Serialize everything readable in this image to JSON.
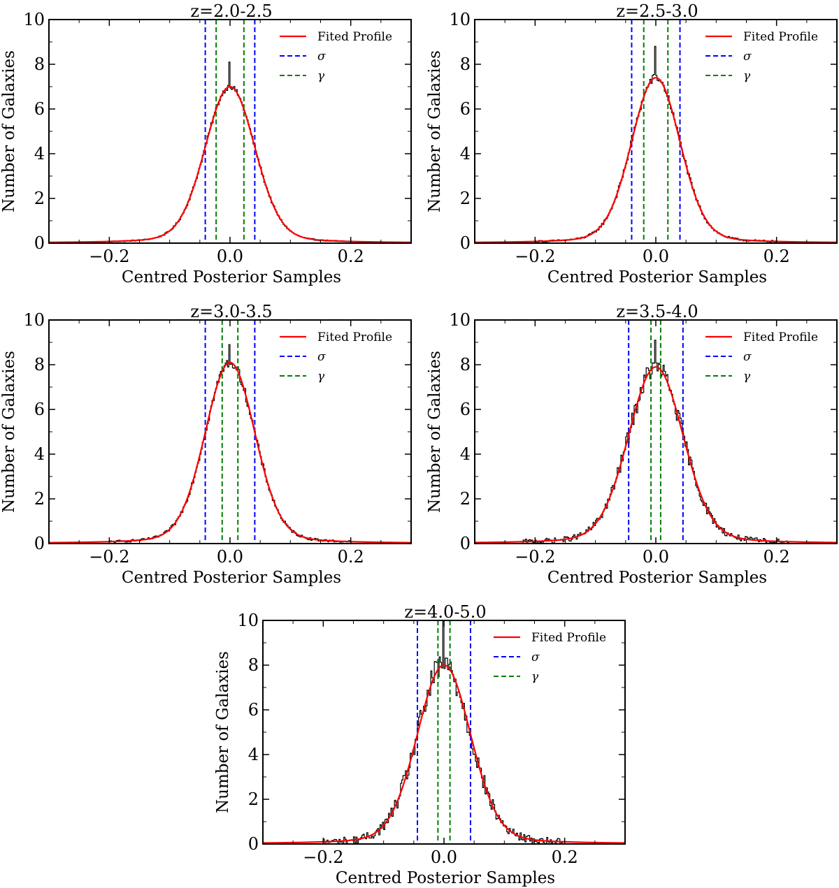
{
  "figure": {
    "panels": [
      {
        "id": "p1",
        "title": "z=2.0-2.5"
      },
      {
        "id": "p2",
        "title": "z=2.5-3.0"
      },
      {
        "id": "p3",
        "title": "z=3.0-3.5"
      },
      {
        "id": "p4",
        "title": "z=3.5-4.0"
      },
      {
        "id": "p5",
        "title": "z=4.0-5.0"
      }
    ],
    "xlabel": "Centred Posterior Samples",
    "ylabel": "Number of Galaxies",
    "legend": {
      "fit": "Fited Profile",
      "sigma": "σ",
      "gamma": "γ"
    }
  },
  "chart_data": [
    {
      "type": "line",
      "title": "z=2.0-2.5",
      "xlabel": "Centred Posterior Samples",
      "ylabel": "Number of Galaxies",
      "xlim": [
        -0.3,
        0.3
      ],
      "ylim": [
        0,
        10
      ],
      "xticks": [
        -0.2,
        0.0,
        0.2
      ],
      "xtick_labels": [
        "−0.2",
        "0.0",
        "0.2"
      ],
      "yticks": [
        0,
        2,
        4,
        6,
        8,
        10
      ],
      "ytick_labels": [
        "0",
        "2",
        "4",
        "6",
        "8",
        "10"
      ],
      "fit": {
        "peak": 7.0,
        "sigma": 0.041,
        "gamma": 0.023
      },
      "sigma_lines": [
        -0.041,
        0.041
      ],
      "gamma_lines": [
        -0.023,
        0.023
      ],
      "hist": {
        "x_range": [
          -0.2,
          0.2
        ],
        "max": 8.1,
        "noise": 0.12
      },
      "series": [
        {
          "name": "Fited Profile",
          "color": "#ff0000"
        },
        {
          "name": "σ",
          "color": "#0000ff"
        },
        {
          "name": "γ",
          "color": "#007f00"
        }
      ],
      "legend": "top-right"
    },
    {
      "type": "line",
      "title": "z=2.5-3.0",
      "xlabel": "Centred Posterior Samples",
      "ylabel": "Number of Galaxies",
      "xlim": [
        -0.3,
        0.3
      ],
      "ylim": [
        0,
        10
      ],
      "xticks": [
        -0.2,
        0.0,
        0.2
      ],
      "xtick_labels": [
        "−0.2",
        "0.0",
        "0.2"
      ],
      "yticks": [
        0,
        2,
        4,
        6,
        8,
        10
      ],
      "ytick_labels": [
        "0",
        "2",
        "4",
        "6",
        "8",
        "10"
      ],
      "fit": {
        "peak": 7.4,
        "sigma": 0.04,
        "gamma": 0.02
      },
      "sigma_lines": [
        -0.04,
        0.04
      ],
      "gamma_lines": [
        -0.02,
        0.02
      ],
      "hist": {
        "x_range": [
          -0.2,
          0.2
        ],
        "max": 8.8,
        "noise": 0.18
      },
      "series": [
        {
          "name": "Fited Profile",
          "color": "#ff0000"
        },
        {
          "name": "σ",
          "color": "#0000ff"
        },
        {
          "name": "γ",
          "color": "#007f00"
        }
      ],
      "legend": "top-right"
    },
    {
      "type": "line",
      "title": "z=3.0-3.5",
      "xlabel": "Centred Posterior Samples",
      "ylabel": "Number of Galaxies",
      "xlim": [
        -0.3,
        0.3
      ],
      "ylim": [
        0,
        10
      ],
      "xticks": [
        -0.2,
        0.0,
        0.2
      ],
      "xtick_labels": [
        "−0.2",
        "0.0",
        "0.2"
      ],
      "yticks": [
        0,
        2,
        4,
        6,
        8,
        10
      ],
      "ytick_labels": [
        "0",
        "2",
        "4",
        "6",
        "8",
        "10"
      ],
      "fit": {
        "peak": 8.1,
        "sigma": 0.041,
        "gamma": 0.013
      },
      "sigma_lines": [
        -0.041,
        0.041
      ],
      "gamma_lines": [
        -0.013,
        0.013
      ],
      "hist": {
        "x_range": [
          -0.2,
          0.2
        ],
        "max": 8.9,
        "noise": 0.22
      },
      "series": [
        {
          "name": "Fited Profile",
          "color": "#ff0000"
        },
        {
          "name": "σ",
          "color": "#0000ff"
        },
        {
          "name": "γ",
          "color": "#007f00"
        }
      ],
      "legend": "top-right"
    },
    {
      "type": "line",
      "title": "z=3.5-4.0",
      "xlabel": "Centred Posterior Samples",
      "ylabel": "Number of Galaxies",
      "xlim": [
        -0.3,
        0.3
      ],
      "ylim": [
        0,
        10
      ],
      "xticks": [
        -0.2,
        0.0,
        0.2
      ],
      "xtick_labels": [
        "−0.2",
        "0.0",
        "0.2"
      ],
      "yticks": [
        0,
        2,
        4,
        6,
        8,
        10
      ],
      "ytick_labels": [
        "0",
        "2",
        "4",
        "6",
        "8",
        "10"
      ],
      "fit": {
        "peak": 7.9,
        "sigma": 0.045,
        "gamma": 0.008
      },
      "sigma_lines": [
        -0.045,
        0.045
      ],
      "gamma_lines": [
        -0.008,
        0.008
      ],
      "hist": {
        "x_range": [
          -0.22,
          0.22
        ],
        "max": 9.1,
        "noise": 0.45
      },
      "series": [
        {
          "name": "Fited Profile",
          "color": "#ff0000"
        },
        {
          "name": "σ",
          "color": "#0000ff"
        },
        {
          "name": "γ",
          "color": "#007f00"
        }
      ],
      "legend": "top-right"
    },
    {
      "type": "line",
      "title": "z=4.0-5.0",
      "xlabel": "Centred Posterior Samples",
      "ylabel": "Number of Galaxies",
      "xlim": [
        -0.3,
        0.3
      ],
      "ylim": [
        0,
        10
      ],
      "xticks": [
        -0.2,
        0.0,
        0.2
      ],
      "xtick_labels": [
        "−0.2",
        "0.0",
        "0.2"
      ],
      "yticks": [
        0,
        2,
        4,
        6,
        8,
        10
      ],
      "ytick_labels": [
        "0",
        "2",
        "4",
        "6",
        "8",
        "10"
      ],
      "fit": {
        "peak": 8.0,
        "sigma": 0.044,
        "gamma": 0.01
      },
      "sigma_lines": [
        -0.044,
        0.044
      ],
      "gamma_lines": [
        -0.01,
        0.01
      ],
      "hist": {
        "x_range": [
          -0.2,
          0.2
        ],
        "max": 10.0,
        "noise": 0.65
      },
      "series": [
        {
          "name": "Fited Profile",
          "color": "#ff0000"
        },
        {
          "name": "σ",
          "color": "#0000ff"
        },
        {
          "name": "γ",
          "color": "#007f00"
        }
      ],
      "legend": "top-right"
    }
  ]
}
